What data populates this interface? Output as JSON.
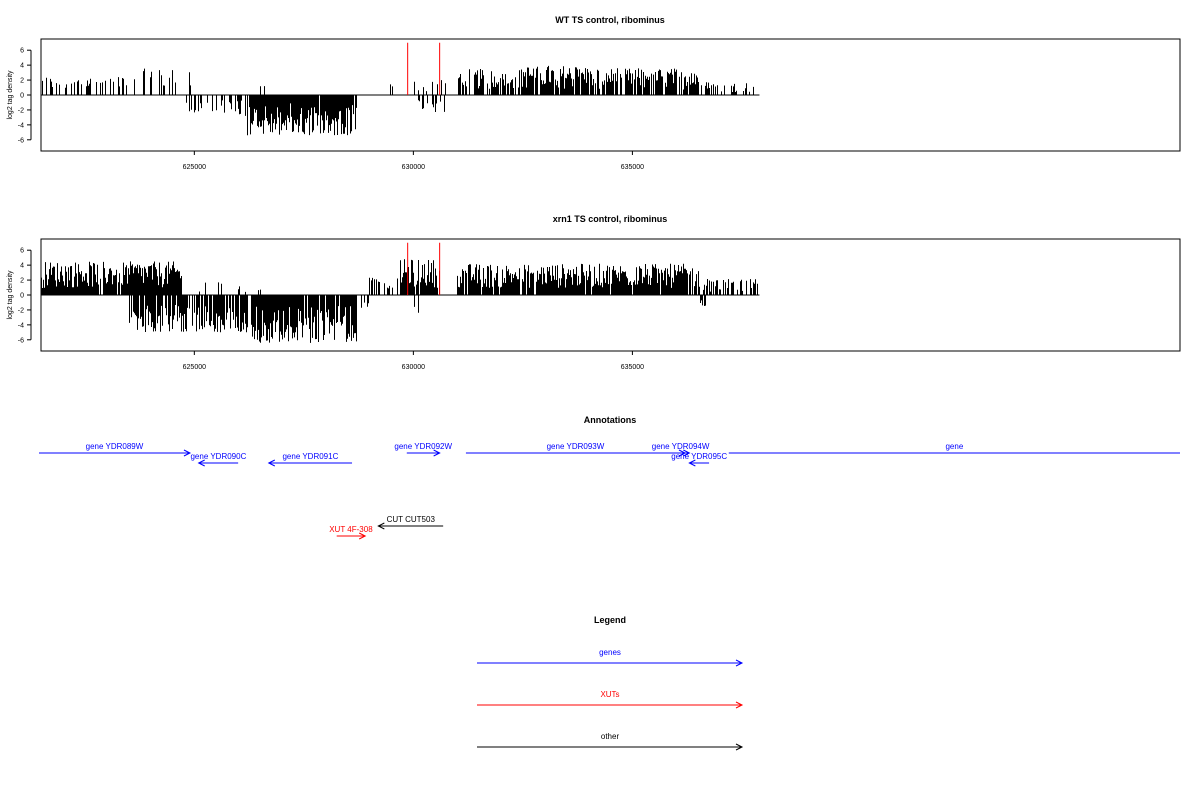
{
  "colors": {
    "gene": "#0000ff",
    "xut": "#ff0000",
    "other": "#000000",
    "highlight": "#ff0000",
    "signal": "#000000"
  },
  "chart_data": [
    {
      "type": "bar",
      "title": "WT TS control, ribominus",
      "ylabel": "log2 tag density",
      "ylim": [
        -7.5,
        7.5
      ],
      "yticks": [
        -6,
        -4,
        -2,
        0,
        2,
        4,
        6
      ],
      "xlim": [
        621500,
        647500
      ],
      "xticks": [
        625000,
        630000,
        635000
      ],
      "xtick_labels": [
        "625000",
        "630000",
        "635000"
      ],
      "grid": false,
      "highlights": [
        {
          "position": 629870,
          "value": 7
        },
        {
          "position": 630600,
          "value": 7
        }
      ],
      "series": [
        {
          "strand": "plus",
          "segments": [
            {
              "from": 621500,
              "to": 623500,
              "max": 2.5,
              "density": 0.35
            },
            {
              "from": 623500,
              "to": 624200,
              "max": 4.5,
              "density": 0.3
            },
            {
              "from": 624200,
              "to": 625100,
              "max": 3.6,
              "density": 0.25
            },
            {
              "from": 626300,
              "to": 626700,
              "max": 2,
              "density": 0.1
            },
            {
              "from": 629200,
              "to": 629900,
              "max": 1.5,
              "density": 0.1
            },
            {
              "from": 630000,
              "to": 630800,
              "max": 2,
              "density": 0.2
            },
            {
              "from": 631000,
              "to": 632500,
              "max": 3.5,
              "density": 0.7
            },
            {
              "from": 632500,
              "to": 634000,
              "max": 4,
              "density": 0.85
            },
            {
              "from": 634000,
              "to": 636500,
              "max": 3.6,
              "density": 0.8
            },
            {
              "from": 636500,
              "to": 637900,
              "max": 1.8,
              "density": 0.25
            }
          ]
        },
        {
          "strand": "minus",
          "segments": [
            {
              "from": 624800,
              "to": 626800,
              "max": 2.8,
              "density": 0.3
            },
            {
              "from": 626200,
              "to": 628700,
              "max": 5.5,
              "density": 0.95
            },
            {
              "from": 630100,
              "to": 630700,
              "max": 2.4,
              "density": 0.3
            }
          ]
        }
      ]
    },
    {
      "type": "bar",
      "title": "xrn1 TS control, ribominus",
      "ylabel": "log2 tag density",
      "ylim": [
        -7.5,
        7.5
      ],
      "yticks": [
        -6,
        -4,
        -2,
        0,
        2,
        4,
        6
      ],
      "xlim": [
        621500,
        647500
      ],
      "xticks": [
        625000,
        630000,
        635000
      ],
      "xtick_labels": [
        "625000",
        "630000",
        "635000"
      ],
      "grid": false,
      "highlights": [
        {
          "position": 629870,
          "value": 7
        },
        {
          "position": 630600,
          "value": 7
        }
      ],
      "series": [
        {
          "strand": "plus",
          "segments": [
            {
              "from": 621500,
              "to": 624700,
              "max": 4.5,
              "density": 0.95
            },
            {
              "from": 625000,
              "to": 626500,
              "max": 2,
              "density": 0.15
            },
            {
              "from": 628900,
              "to": 629700,
              "max": 2.5,
              "density": 0.3
            },
            {
              "from": 629700,
              "to": 630600,
              "max": 4.8,
              "density": 0.9
            },
            {
              "from": 631000,
              "to": 636500,
              "max": 4.2,
              "density": 0.9
            },
            {
              "from": 636500,
              "to": 637900,
              "max": 2.2,
              "density": 0.5
            }
          ]
        },
        {
          "strand": "minus",
          "segments": [
            {
              "from": 623500,
              "to": 626300,
              "max": 5,
              "density": 0.8
            },
            {
              "from": 626300,
              "to": 628700,
              "max": 6.5,
              "density": 0.95
            },
            {
              "from": 628800,
              "to": 629000,
              "max": 2,
              "density": 0.3
            },
            {
              "from": 630000,
              "to": 630200,
              "max": 2.8,
              "density": 0.3
            },
            {
              "from": 636500,
              "to": 636700,
              "max": 1.5,
              "density": 0.3
            }
          ]
        }
      ]
    }
  ],
  "annotations": {
    "title": "Annotations",
    "features": [
      {
        "label": "gene YDR089W",
        "kind": "gene",
        "start": 620800,
        "end": 624900,
        "strand": "+",
        "row": 0
      },
      {
        "label": "gene YDR090C",
        "kind": "gene",
        "start": 625100,
        "end": 626000,
        "strand": "-",
        "row": 1
      },
      {
        "label": "gene YDR091C",
        "kind": "gene",
        "start": 626700,
        "end": 628600,
        "strand": "-",
        "row": 1
      },
      {
        "label": "gene YDR092W",
        "kind": "gene",
        "start": 629850,
        "end": 630600,
        "strand": "+",
        "row": 0
      },
      {
        "label": "gene YDR093W",
        "kind": "gene",
        "start": 631200,
        "end": 636200,
        "strand": "+",
        "row": 0
      },
      {
        "label": "gene YDR094W",
        "kind": "gene",
        "start": 635900,
        "end": 636300,
        "strand": "+",
        "row": 0
      },
      {
        "label": "gene YDR095C",
        "kind": "gene",
        "start": 636300,
        "end": 636750,
        "strand": "-",
        "row": 1
      },
      {
        "label": "gene",
        "kind": "gene",
        "start": 637200,
        "end": 649000,
        "strand": "+",
        "row": 0
      },
      {
        "label": "CUT CUT503",
        "kind": "other",
        "start": 629200,
        "end": 630680,
        "strand": "-",
        "row": 3
      },
      {
        "label": "XUT 4F-308",
        "kind": "xut",
        "start": 628250,
        "end": 628900,
        "strand": "+",
        "row": 4
      }
    ]
  },
  "legend": {
    "title": "Legend",
    "items": [
      {
        "label": "genes",
        "kind": "gene"
      },
      {
        "label": "XUTs",
        "kind": "xut"
      },
      {
        "label": "other",
        "kind": "other"
      }
    ]
  }
}
